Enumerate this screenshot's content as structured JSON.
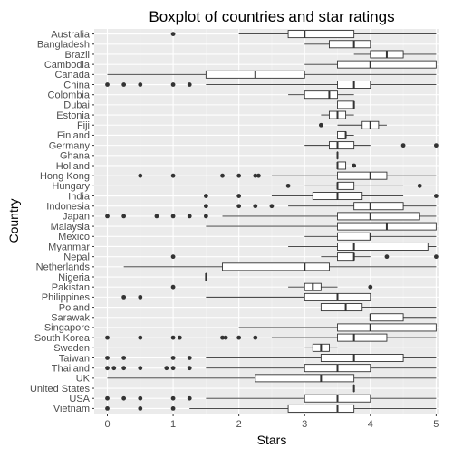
{
  "chart_data": {
    "type": "boxplot",
    "orientation": "horizontal",
    "title": "Boxplot of countries and star ratings",
    "xlabel": "Stars",
    "ylabel": "Country",
    "xlim": [
      -0.2,
      5.05
    ],
    "xticks": [
      0,
      1,
      2,
      3,
      4,
      5
    ],
    "grid": true,
    "legend": "none",
    "colors": {
      "panel": "#ebebeb",
      "grid_major": "#ffffff",
      "grid_minor": "#f4f4f4",
      "box_fill": "#ffffff",
      "line": "#333333",
      "outlier": "#333333",
      "tick_label": "#4d4d4d"
    },
    "categories": [
      "Australia",
      "Bangladesh",
      "Brazil",
      "Cambodia",
      "Canada",
      "China",
      "Colombia",
      "Dubai",
      "Estonia",
      "Fiji",
      "Finland",
      "Germany",
      "Ghana",
      "Holland",
      "Hong Kong",
      "Hungary",
      "India",
      "Indonesia",
      "Japan",
      "Malaysia",
      "Mexico",
      "Myanmar",
      "Nepal",
      "Netherlands",
      "Nigeria",
      "Pakistan",
      "Philippines",
      "Poland",
      "Sarawak",
      "Singapore",
      "South Korea",
      "Sweden",
      "Taiwan",
      "Thailand",
      "UK",
      "United States",
      "USA",
      "Vietnam"
    ],
    "boxes": [
      {
        "country": "Australia",
        "min": 2.0,
        "q1": 2.75,
        "median": 3.0,
        "q3": 3.75,
        "max": 5.0,
        "outliers": [
          1.0
        ]
      },
      {
        "country": "Bangladesh",
        "min": 3.0,
        "q1": 3.375,
        "median": 3.75,
        "q3": 4.0,
        "max": 4.0,
        "outliers": []
      },
      {
        "country": "Brazil",
        "min": 3.75,
        "q1": 4.0,
        "median": 4.25,
        "q3": 4.5,
        "max": 5.0,
        "outliers": []
      },
      {
        "country": "Cambodia",
        "min": 3.0,
        "q1": 3.5,
        "median": 4.0,
        "q3": 5.0,
        "max": 5.0,
        "outliers": []
      },
      {
        "country": "Canada",
        "min": 0.0,
        "q1": 1.5,
        "median": 2.25,
        "q3": 3.0,
        "max": 5.0,
        "outliers": []
      },
      {
        "country": "China",
        "min": 1.5,
        "q1": 3.5,
        "median": 3.75,
        "q3": 4.0,
        "max": 5.0,
        "outliers": [
          0.0,
          0.25,
          0.5,
          1.0,
          1.25
        ]
      },
      {
        "country": "Colombia",
        "min": 2.75,
        "q1": 3.0,
        "median": 3.375,
        "q3": 3.5,
        "max": 3.75,
        "outliers": []
      },
      {
        "country": "Dubai",
        "min": 3.5,
        "q1": 3.5,
        "median": 3.75,
        "q3": 3.75,
        "max": 3.75,
        "outliers": []
      },
      {
        "country": "Estonia",
        "min": 3.25,
        "q1": 3.375,
        "median": 3.5,
        "q3": 3.625,
        "max": 3.75,
        "outliers": []
      },
      {
        "country": "Fiji",
        "min": 3.5,
        "q1": 3.875,
        "median": 4.0,
        "q3": 4.125,
        "max": 4.25,
        "outliers": [
          3.25
        ]
      },
      {
        "country": "Finland",
        "min": 3.5,
        "q1": 3.5,
        "median": 3.625,
        "q3": 3.625,
        "max": 3.75,
        "outliers": []
      },
      {
        "country": "Germany",
        "min": 3.0,
        "q1": 3.375,
        "median": 3.5,
        "q3": 3.75,
        "max": 4.0,
        "outliers": [
          4.5,
          5.0
        ]
      },
      {
        "country": "Ghana",
        "min": 3.5,
        "q1": 3.5,
        "median": 3.5,
        "q3": 3.5,
        "max": 3.5,
        "outliers": []
      },
      {
        "country": "Holland",
        "min": 3.5,
        "q1": 3.5,
        "median": 3.5,
        "q3": 3.625,
        "max": 3.625,
        "outliers": [
          3.75
        ]
      },
      {
        "country": "Hong Kong",
        "min": 2.5,
        "q1": 3.5,
        "median": 4.0,
        "q3": 4.25,
        "max": 5.0,
        "outliers": [
          0.5,
          1.0,
          1.75,
          2.0,
          2.25,
          2.3
        ]
      },
      {
        "country": "Hungary",
        "min": 3.0,
        "q1": 3.5,
        "median": 3.5,
        "q3": 3.75,
        "max": 4.5,
        "outliers": [
          2.75,
          4.75
        ]
      },
      {
        "country": "India",
        "min": 2.5,
        "q1": 3.125,
        "median": 3.5,
        "q3": 3.875,
        "max": 4.5,
        "outliers": [
          1.5,
          2.0,
          5.0
        ]
      },
      {
        "country": "Indonesia",
        "min": 2.75,
        "q1": 3.75,
        "median": 4.0,
        "q3": 4.5,
        "max": 5.0,
        "outliers": [
          1.5,
          2.0,
          2.25,
          2.5
        ]
      },
      {
        "country": "Japan",
        "min": 1.75,
        "q1": 3.5,
        "median": 4.0,
        "q3": 4.75,
        "max": 5.0,
        "outliers": [
          0.0,
          0.25,
          0.75,
          1.0,
          1.25,
          1.5
        ]
      },
      {
        "country": "Malaysia",
        "min": 1.5,
        "q1": 3.5,
        "median": 4.25,
        "q3": 5.0,
        "max": 5.0,
        "outliers": []
      },
      {
        "country": "Mexico",
        "min": 3.0,
        "q1": 3.5,
        "median": 4.0,
        "q3": 4.0,
        "max": 5.0,
        "outliers": []
      },
      {
        "country": "Myanmar",
        "min": 2.75,
        "q1": 3.5,
        "median": 3.75,
        "q3": 4.875,
        "max": 5.0,
        "outliers": []
      },
      {
        "country": "Nepal",
        "min": 3.25,
        "q1": 3.5,
        "median": 3.75,
        "q3": 3.75,
        "max": 4.0,
        "outliers": [
          1.0,
          4.25,
          5.0
        ]
      },
      {
        "country": "Netherlands",
        "min": 0.25,
        "q1": 1.75,
        "median": 3.0,
        "q3": 3.375,
        "max": 5.0,
        "outliers": []
      },
      {
        "country": "Nigeria",
        "min": 1.5,
        "q1": 1.5,
        "median": 1.5,
        "q3": 1.5,
        "max": 1.5,
        "outliers": []
      },
      {
        "country": "Pakistan",
        "min": 2.75,
        "q1": 3.0,
        "median": 3.125,
        "q3": 3.25,
        "max": 3.5,
        "outliers": [
          1.0,
          4.0
        ]
      },
      {
        "country": "Philippines",
        "min": 1.5,
        "q1": 3.0,
        "median": 3.5,
        "q3": 4.0,
        "max": 4.0,
        "outliers": [
          0.25,
          0.5
        ]
      },
      {
        "country": "Poland",
        "min": 3.25,
        "q1": 3.25,
        "median": 3.625,
        "q3": 3.875,
        "max": 5.0,
        "outliers": []
      },
      {
        "country": "Sarawak",
        "min": 4.0,
        "q1": 4.0,
        "median": 4.0,
        "q3": 4.5,
        "max": 5.0,
        "outliers": []
      },
      {
        "country": "Singapore",
        "min": 2.0,
        "q1": 3.5,
        "median": 4.0,
        "q3": 5.0,
        "max": 5.0,
        "outliers": []
      },
      {
        "country": "South Korea",
        "min": 2.5,
        "q1": 3.5,
        "median": 3.75,
        "q3": 4.25,
        "max": 5.0,
        "outliers": [
          0.0,
          0.5,
          1.0,
          1.1,
          1.75,
          1.8,
          2.0,
          2.25
        ]
      },
      {
        "country": "Sweden",
        "min": 3.0,
        "q1": 3.125,
        "median": 3.25,
        "q3": 3.375,
        "max": 3.5,
        "outliers": []
      },
      {
        "country": "Taiwan",
        "min": 1.5,
        "q1": 3.25,
        "median": 3.75,
        "q3": 4.5,
        "max": 5.0,
        "outliers": [
          0.0,
          0.25,
          1.0,
          1.25
        ]
      },
      {
        "country": "Thailand",
        "min": 1.5,
        "q1": 3.0,
        "median": 3.5,
        "q3": 4.0,
        "max": 5.0,
        "outliers": [
          0.0,
          0.1,
          0.25,
          0.5,
          0.9,
          1.0,
          1.25
        ]
      },
      {
        "country": "UK",
        "min": 0.0,
        "q1": 2.25,
        "median": 3.25,
        "q3": 3.75,
        "max": 5.0,
        "outliers": []
      },
      {
        "country": "United States",
        "min": 3.75,
        "q1": 3.75,
        "median": 3.75,
        "q3": 3.75,
        "max": 3.75,
        "outliers": []
      },
      {
        "country": "USA",
        "min": 1.5,
        "q1": 3.0,
        "median": 3.5,
        "q3": 4.0,
        "max": 5.0,
        "outliers": [
          0.0,
          0.25,
          0.5,
          1.0,
          1.25
        ]
      },
      {
        "country": "Vietnam",
        "min": 1.25,
        "q1": 2.75,
        "median": 3.5,
        "q3": 3.75,
        "max": 5.0,
        "outliers": [
          0.0,
          0.5,
          1.0
        ]
      }
    ]
  }
}
